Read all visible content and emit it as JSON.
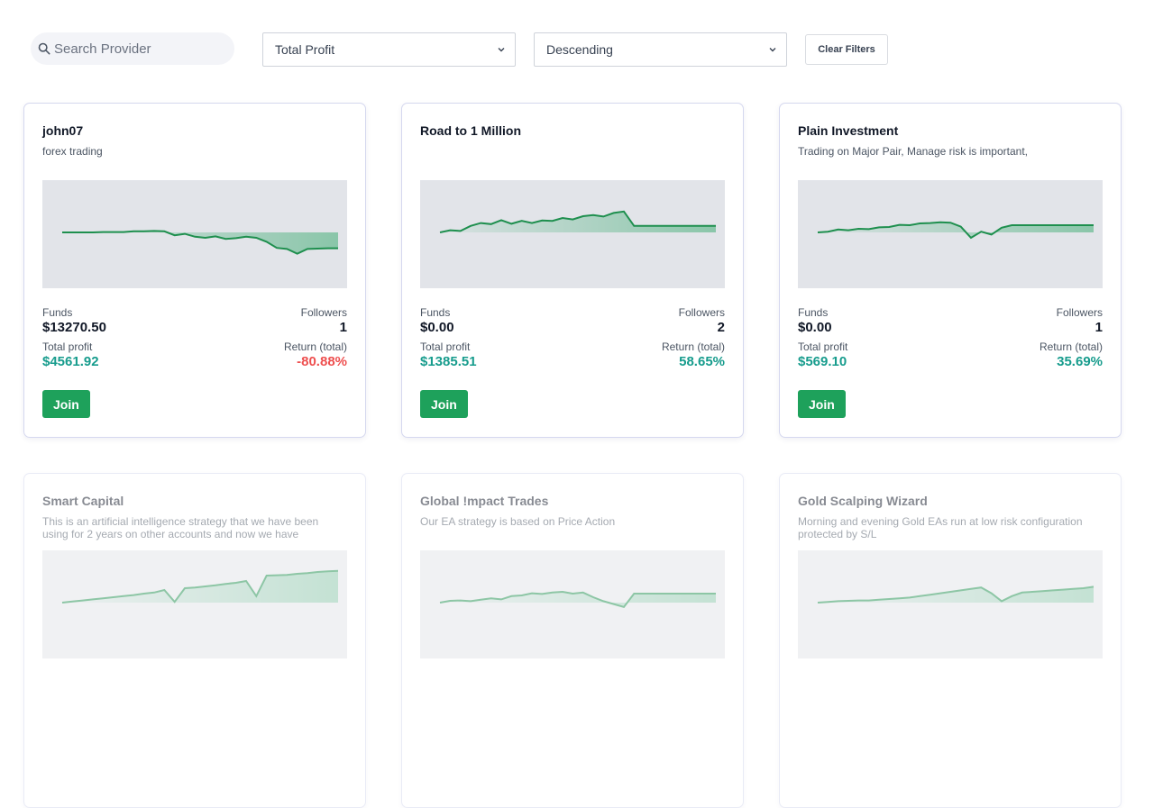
{
  "filters": {
    "search_placeholder": "Search Provider",
    "sort_by": "Total Profit",
    "order": "Descending",
    "clear_label": "Clear Filters"
  },
  "labels": {
    "funds": "Funds",
    "followers": "Followers",
    "total_profit": "Total profit",
    "return_total": "Return (total)",
    "join": "Join"
  },
  "colors": {
    "line": "#1e8f4e",
    "accent": "#1ea15b",
    "positive": "#179c8d",
    "negative": "#ee4f4f"
  },
  "cards": [
    {
      "title": "john07",
      "description": "forex trading",
      "funds": "$13270.50",
      "followers": "1",
      "total_profit": "$4561.92",
      "return_total": "-80.88%",
      "return_sign": "negative",
      "sparkline": [
        0.0,
        0.0,
        0.0,
        0.0,
        0.1,
        0.1,
        0.1,
        0.3,
        0.3,
        0.4,
        0.3,
        -0.8,
        -0.4,
        -1.2,
        -1.5,
        -1.1,
        -1.8,
        -1.6,
        -1.2,
        -1.5,
        -2.6,
        -4.3,
        -4.6,
        -5.9,
        -4.6,
        -4.5,
        -4.4,
        -4.4
      ]
    },
    {
      "title": "Road to 1 Million",
      "description": "",
      "funds": "$0.00",
      "followers": "2",
      "total_profit": "$1385.51",
      "return_total": "58.65%",
      "return_sign": "positive",
      "sparkline": [
        0.0,
        0.6,
        0.4,
        1.8,
        2.6,
        2.3,
        3.4,
        2.4,
        3.2,
        2.6,
        3.3,
        3.2,
        4.0,
        3.6,
        4.5,
        4.8,
        4.4,
        5.4,
        5.8,
        1.8,
        1.8,
        1.8,
        1.8,
        1.8,
        1.8,
        1.8,
        1.8,
        1.8
      ]
    },
    {
      "title": "Plain Investment",
      "description": "Trading on Major Pair, Manage risk is important,",
      "funds": "$0.00",
      "followers": "1",
      "total_profit": "$569.10",
      "return_total": "35.69%",
      "return_sign": "positive",
      "sparkline": [
        0.0,
        0.2,
        0.8,
        0.6,
        1.0,
        0.9,
        1.4,
        1.5,
        2.1,
        2.0,
        2.5,
        2.6,
        2.8,
        2.7,
        1.6,
        -1.5,
        0.2,
        -0.6,
        1.3,
        2.0,
        2.0,
        2.0,
        2.0,
        2.0,
        2.0,
        2.0,
        2.0,
        2.0
      ]
    },
    {
      "title": "Smart Capital",
      "description": "This is an artificial intelligence strategy that we have been using for 2 years on other accounts and now we have",
      "funds": "",
      "followers": "",
      "total_profit": "",
      "return_total": "",
      "return_sign": "positive",
      "sparkline": [
        0.0,
        0.3,
        0.6,
        0.9,
        1.2,
        1.5,
        1.8,
        2.1,
        2.5,
        2.8,
        3.5,
        0.2,
        4.0,
        4.2,
        4.5,
        4.8,
        5.2,
        5.5,
        6.0,
        1.8,
        7.5,
        7.6,
        7.7,
        8.0,
        8.2,
        8.5,
        8.7,
        8.8
      ]
    },
    {
      "title": "Global !mpact Trades",
      "description": "Our EA strategy is based on Price Action",
      "funds": "",
      "followers": "",
      "total_profit": "",
      "return_total": "",
      "return_sign": "positive",
      "sparkline": [
        0.0,
        0.5,
        0.6,
        0.4,
        0.8,
        1.2,
        0.9,
        1.8,
        2.0,
        2.6,
        2.4,
        2.8,
        3.0,
        2.5,
        2.8,
        1.5,
        0.4,
        -0.4,
        -1.2,
        2.5,
        2.5,
        2.5,
        2.5,
        2.5,
        2.5,
        2.5,
        2.5,
        2.5
      ]
    },
    {
      "title": "Gold Scalping Wizard",
      "description": "Morning and evening Gold EAs run at low risk configuration protected by S/L",
      "funds": "",
      "followers": "",
      "total_profit": "",
      "return_total": "",
      "return_sign": "positive",
      "sparkline": [
        0.0,
        0.2,
        0.4,
        0.5,
        0.6,
        0.6,
        0.8,
        1.0,
        1.2,
        1.4,
        1.8,
        2.2,
        2.6,
        3.0,
        3.4,
        3.8,
        4.2,
        2.6,
        0.4,
        1.8,
        2.8,
        3.0,
        3.2,
        3.4,
        3.6,
        3.8,
        4.0,
        4.4
      ]
    }
  ]
}
